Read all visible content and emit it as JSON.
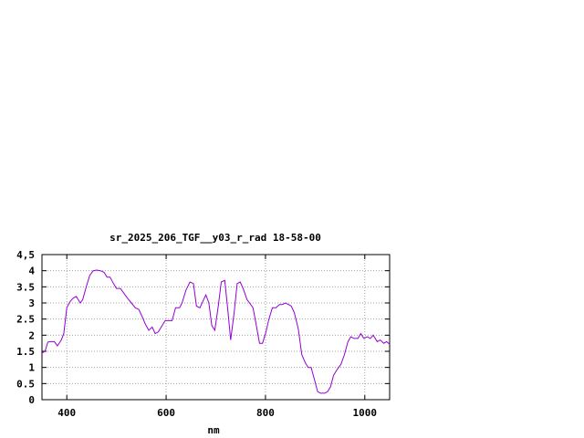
{
  "chart_data": {
    "type": "line",
    "title": "sr_2025_206_TGF__y03_r_rad 18-58-00",
    "xlabel": "nm",
    "ylabel": "",
    "xlim": [
      350,
      1050
    ],
    "ylim": [
      0,
      4.5
    ],
    "x_ticks": [
      400,
      600,
      800,
      1000
    ],
    "x_tick_labels": [
      "400",
      "600",
      "800",
      "1000"
    ],
    "y_ticks": [
      0,
      0.5,
      1,
      1.5,
      2,
      2.5,
      3,
      3.5,
      4,
      4.5
    ],
    "y_tick_labels": [
      "0",
      "0.5",
      "1",
      "1.5",
      "2",
      "2.5",
      "3",
      "3.5",
      "4",
      "4,5"
    ],
    "grid": true,
    "line_color": "#9400d3",
    "series": [
      {
        "x": [
          350,
          356,
          362,
          368,
          375,
          381,
          389,
          394,
          400,
          407,
          413,
          419,
          427,
          432,
          440,
          446,
          453,
          460,
          468,
          475,
          481,
          487,
          494,
          500,
          508,
          515,
          522,
          530,
          538,
          545,
          551,
          558,
          565,
          572,
          578,
          584,
          592,
          598,
          605,
          612,
          619,
          627,
          632,
          640,
          648,
          655,
          661,
          668,
          674,
          680,
          686,
          692,
          698,
          705,
          711,
          718,
          724,
          730,
          737,
          743,
          749,
          755,
          763,
          768,
          775,
          781,
          788,
          794,
          801,
          807,
          814,
          821,
          828,
          834,
          840,
          847,
          852,
          858,
          866,
          873,
          880,
          886,
          892,
          899,
          905,
          911,
          919,
          925,
          931,
          937,
          945,
          952,
          959,
          966,
          972,
          978,
          986,
          992,
          998,
          1005,
          1011,
          1017,
          1025,
          1031,
          1038,
          1044,
          1050
        ],
        "y": [
          1.45,
          1.5,
          1.79,
          1.8,
          1.8,
          1.67,
          1.85,
          2.05,
          2.85,
          3.05,
          3.15,
          3.2,
          3.0,
          3.1,
          3.55,
          3.85,
          4.0,
          4.02,
          4.0,
          3.95,
          3.8,
          3.8,
          3.6,
          3.45,
          3.45,
          3.3,
          3.15,
          3.0,
          2.85,
          2.8,
          2.6,
          2.35,
          2.15,
          2.25,
          2.05,
          2.1,
          2.3,
          2.45,
          2.45,
          2.45,
          2.85,
          2.85,
          3.0,
          3.4,
          3.65,
          3.6,
          2.9,
          2.85,
          3.05,
          3.25,
          3.0,
          2.3,
          2.15,
          2.9,
          3.65,
          3.7,
          2.8,
          1.85,
          2.7,
          3.6,
          3.65,
          3.45,
          3.1,
          3.0,
          2.85,
          2.35,
          1.75,
          1.75,
          2.1,
          2.5,
          2.85,
          2.85,
          2.95,
          2.95,
          3.0,
          2.95,
          2.9,
          2.7,
          2.2,
          1.4,
          1.15,
          1.0,
          1.0,
          0.6,
          0.25,
          0.2,
          0.2,
          0.25,
          0.4,
          0.75,
          0.95,
          1.1,
          1.4,
          1.8,
          1.95,
          1.9,
          1.9,
          2.05,
          1.9,
          1.95,
          1.9,
          2.0,
          1.8,
          1.85,
          1.75,
          1.8,
          1.72
        ]
      }
    ]
  }
}
